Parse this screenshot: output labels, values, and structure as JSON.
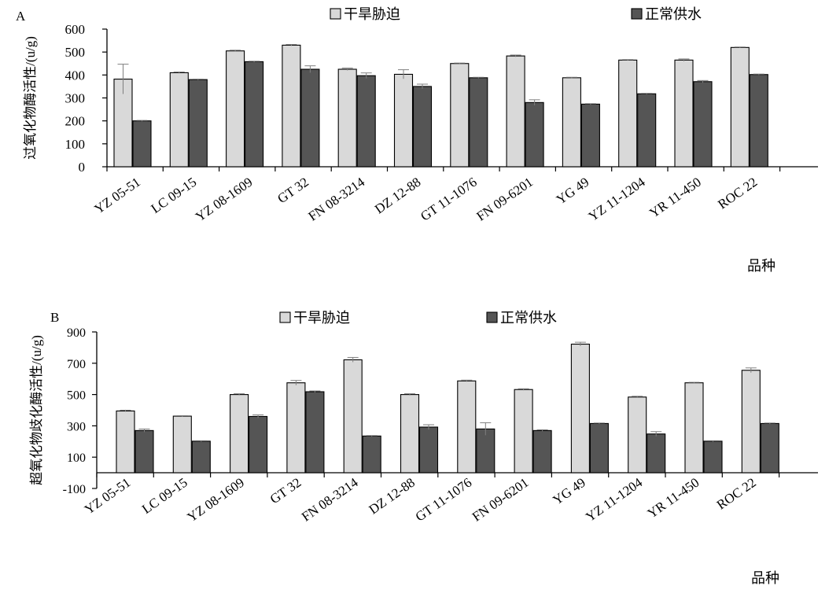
{
  "colors": {
    "drought": "#d9d9d9",
    "normal": "#555555",
    "outline": "#000000",
    "error_bar": "#7f7f7f"
  },
  "chart_data": [
    {
      "type": "bar",
      "panel_label": "A",
      "title": "",
      "ylabel": "过氧化物酶活性/(u/g)",
      "xlabel": "品种",
      "ylim": [
        0,
        600
      ],
      "y_ticks": [
        0,
        100,
        200,
        300,
        400,
        500,
        600
      ],
      "grid": false,
      "legend_position": "top",
      "categories": [
        "YZ 05-51",
        "LC 09-15",
        "YZ 08-1609",
        "GT 32",
        "FN 08-3214",
        "DZ 12-88",
        "GT 11-1076",
        "FN 09-6201",
        "YG 49",
        "YZ 11-1204",
        "YR 11-450",
        "ROC 22"
      ],
      "series": [
        {
          "name": "干旱胁迫",
          "values": [
            382,
            410,
            505,
            530,
            425,
            403,
            450,
            483,
            388,
            465,
            465,
            520
          ],
          "errors": [
            65,
            3,
            3,
            3,
            5,
            20,
            2,
            4,
            2,
            2,
            5,
            2
          ]
        },
        {
          "name": "正常供水",
          "values": [
            200,
            380,
            458,
            425,
            397,
            350,
            388,
            280,
            273,
            318,
            371,
            402
          ],
          "errors": [
            2,
            2,
            2,
            15,
            12,
            10,
            2,
            12,
            2,
            2,
            5,
            2
          ]
        }
      ]
    },
    {
      "type": "bar",
      "panel_label": "B",
      "title": "",
      "ylabel": "超氧化物歧化酶活性/(u/g)",
      "xlabel": "品种",
      "ylim": [
        -100,
        900
      ],
      "y_ticks": [
        -100,
        100,
        300,
        500,
        700,
        900
      ],
      "grid": false,
      "legend_position": "top",
      "categories": [
        "YZ 05-51",
        "LC 09-15",
        "YZ 08-1609",
        "GT 32",
        "FN 08-3214",
        "DZ 12-88",
        "GT 11-1076",
        "FN 09-6201",
        "YG 49",
        "YZ 11-1204",
        "YR 11-450",
        "ROC 22"
      ],
      "series": [
        {
          "name": "干旱胁迫",
          "values": [
            395,
            362,
            500,
            575,
            722,
            500,
            587,
            532,
            822,
            484,
            575,
            655
          ],
          "errors": [
            5,
            3,
            5,
            15,
            15,
            5,
            5,
            5,
            12,
            5,
            3,
            15
          ]
        },
        {
          "name": "正常供水",
          "values": [
            270,
            202,
            360,
            518,
            235,
            292,
            280,
            270,
            315,
            248,
            202,
            315
          ],
          "errors": [
            10,
            3,
            10,
            5,
            3,
            15,
            40,
            5,
            3,
            15,
            3,
            3
          ]
        }
      ]
    }
  ]
}
